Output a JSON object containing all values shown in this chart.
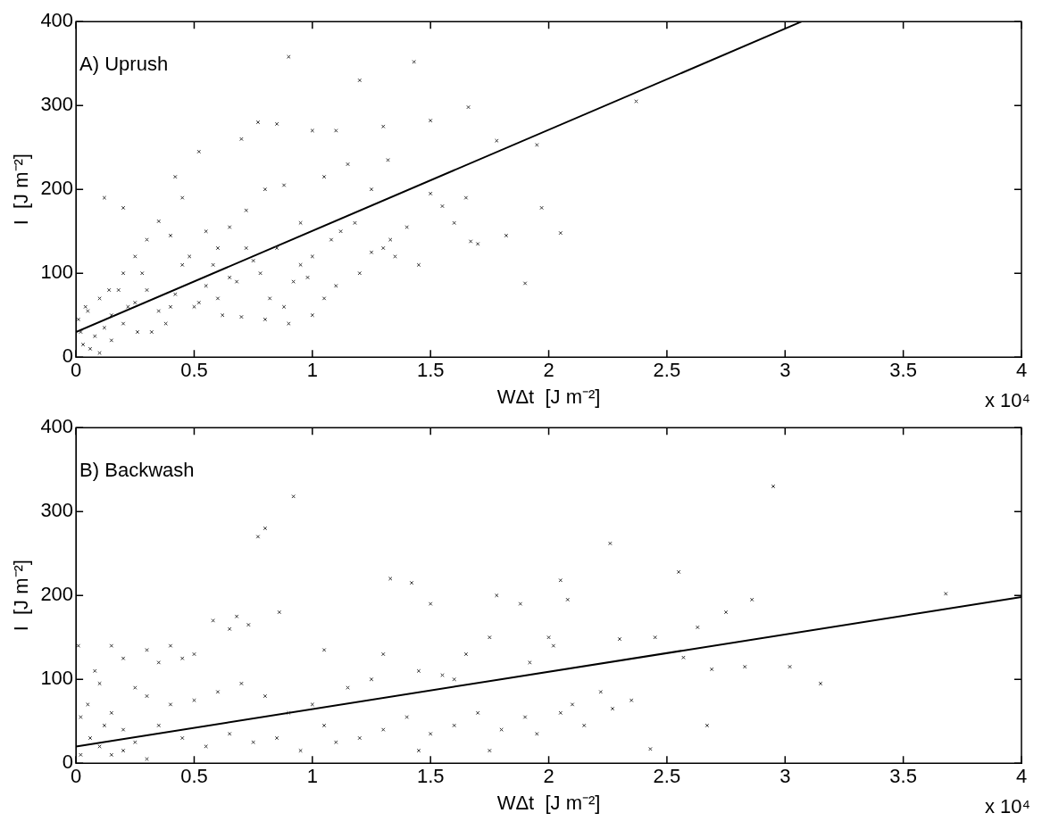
{
  "chart_data": [
    {
      "type": "scatter",
      "xlabel": "WΔt  [J m⁻²]",
      "ylabel": "I  [J m⁻²]",
      "annotations": [
        "A) Uprush",
        "x 10⁴"
      ],
      "xlim": [
        0,
        4
      ],
      "xticks": [
        0,
        0.5,
        1,
        1.5,
        2,
        2.5,
        3,
        3.5,
        4
      ],
      "ylim": [
        0,
        400
      ],
      "yticks": [
        0,
        100,
        200,
        300,
        400
      ],
      "grid": false,
      "legend": false,
      "marker": "cross",
      "series": [
        {
          "color": "#333333",
          "x": [
            0.9,
            1.43,
            1.2,
            1.66,
            2.37,
            1.78,
            1.95,
            0.52,
            0.7,
            0.77,
            0.85,
            1.0,
            1.1,
            1.3,
            1.5,
            1.97,
            2.05,
            1.9,
            1.65,
            1.67,
            1.82,
            0.2,
            0.12,
            0.35,
            0.45,
            0.42,
            0.3,
            0.2,
            0.25,
            0.4,
            0.55,
            0.6,
            0.65,
            0.72,
            0.8,
            0.88,
            0.95,
            1.05,
            1.15,
            1.25,
            1.32,
            1.35,
            1.4,
            1.45,
            1.5,
            1.55,
            1.6,
            1.7,
            0.5,
            0.6,
            0.7,
            0.8,
            0.9,
            1.0,
            1.05,
            1.1,
            1.2,
            1.0,
            0.95,
            0.85,
            0.75,
            0.65,
            0.55,
            0.45,
            0.4,
            0.35,
            0.3,
            0.25,
            0.2,
            0.15,
            0.1,
            0.05,
            0.02,
            0.03,
            0.08,
            0.12,
            0.18,
            0.22,
            0.28,
            0.32,
            0.38,
            0.42,
            0.48,
            0.52,
            0.58,
            0.62,
            0.68,
            0.78,
            0.82,
            0.92,
            1.08,
            1.18,
            1.25,
            1.3,
            1.33,
            0.06,
            0.1,
            0.15,
            0.01,
            0.04,
            0.14,
            0.26,
            1.12,
            0.98,
            0.88,
            0.72
          ],
          "values": [
            358,
            352,
            330,
            298,
            305,
            258,
            253,
            245,
            260,
            280,
            278,
            270,
            270,
            275,
            282,
            178,
            148,
            88,
            190,
            138,
            145,
            178,
            190,
            162,
            190,
            215,
            140,
            100,
            120,
            145,
            150,
            130,
            155,
            175,
            200,
            205,
            160,
            215,
            230,
            200,
            235,
            120,
            155,
            110,
            195,
            180,
            160,
            135,
            60,
            70,
            48,
            45,
            40,
            50,
            70,
            85,
            100,
            120,
            110,
            130,
            115,
            95,
            85,
            110,
            60,
            55,
            80,
            65,
            40,
            50,
            70,
            55,
            30,
            15,
            25,
            35,
            80,
            60,
            100,
            30,
            40,
            75,
            120,
            65,
            110,
            50,
            90,
            100,
            70,
            90,
            140,
            160,
            125,
            130,
            140,
            10,
            5,
            20,
            45,
            60,
            80,
            30,
            150,
            95,
            60,
            130
          ]
        },
        {
          "type": "line",
          "color": "#000000",
          "marker": "none",
          "x": [
            0,
            3.07
          ],
          "values": [
            30,
            400
          ]
        }
      ]
    },
    {
      "type": "scatter",
      "xlabel": "WΔt  [J m⁻²]",
      "ylabel": "I  [J m⁻²]",
      "annotations": [
        "B) Backwash",
        "x 10⁴"
      ],
      "xlim": [
        0,
        4
      ],
      "xticks": [
        0,
        0.5,
        1,
        1.5,
        2,
        2.5,
        3,
        3.5,
        4
      ],
      "ylim": [
        0,
        400
      ],
      "yticks": [
        0,
        100,
        200,
        300,
        400
      ],
      "grid": false,
      "legend": false,
      "marker": "cross",
      "series": [
        {
          "color": "#333333",
          "x": [
            0.92,
            2.95,
            0.77,
            0.8,
            2.26,
            2.55,
            2.05,
            2.08,
            1.33,
            1.42,
            1.5,
            1.78,
            1.88,
            0.58,
            0.65,
            0.68,
            0.73,
            0.86,
            0.15,
            0.3,
            0.4,
            0.5,
            0.2,
            0.35,
            0.45,
            1.05,
            1.3,
            1.65,
            1.75,
            2.75,
            2.86,
            3.68,
            2.63,
            2.45,
            2.3,
            2.02,
            2.0,
            1.92,
            2.57,
            2.69,
            2.83,
            3.02,
            3.15,
            2.22,
            2.35,
            2.27,
            2.1,
            2.15,
            2.43,
            2.67,
            1.95,
            2.05,
            1.55,
            1.6,
            1.45,
            1.25,
            1.15,
            1.0,
            0.9,
            0.8,
            0.7,
            0.6,
            0.5,
            0.4,
            0.3,
            0.25,
            0.1,
            0.05,
            0.15,
            0.2,
            0.35,
            0.45,
            0.55,
            0.65,
            0.75,
            0.85,
            0.95,
            1.05,
            1.1,
            1.2,
            1.3,
            1.4,
            1.5,
            1.6,
            1.7,
            1.8,
            1.9,
            1.75,
            1.45,
            0.02,
            0.06,
            0.1,
            0.15,
            0.2,
            0.25,
            0.3,
            0.01,
            0.02,
            0.08,
            0.12
          ],
          "values": [
            318,
            330,
            270,
            280,
            262,
            228,
            218,
            195,
            220,
            215,
            190,
            200,
            190,
            170,
            160,
            175,
            165,
            180,
            140,
            135,
            140,
            130,
            125,
            120,
            125,
            135,
            130,
            130,
            150,
            180,
            195,
            202,
            162,
            150,
            148,
            140,
            150,
            120,
            126,
            112,
            115,
            115,
            95,
            85,
            75,
            65,
            70,
            45,
            17,
            45,
            35,
            60,
            105,
            100,
            110,
            100,
            90,
            70,
            60,
            80,
            95,
            85,
            75,
            70,
            80,
            90,
            95,
            70,
            60,
            40,
            45,
            30,
            20,
            35,
            25,
            30,
            15,
            45,
            25,
            30,
            40,
            55,
            35,
            45,
            60,
            40,
            55,
            15,
            15,
            10,
            30,
            20,
            10,
            15,
            25,
            5,
            140,
            55,
            110,
            45
          ]
        },
        {
          "type": "line",
          "color": "#000000",
          "marker": "none",
          "x": [
            0,
            4
          ],
          "values": [
            20,
            198
          ]
        }
      ]
    }
  ]
}
